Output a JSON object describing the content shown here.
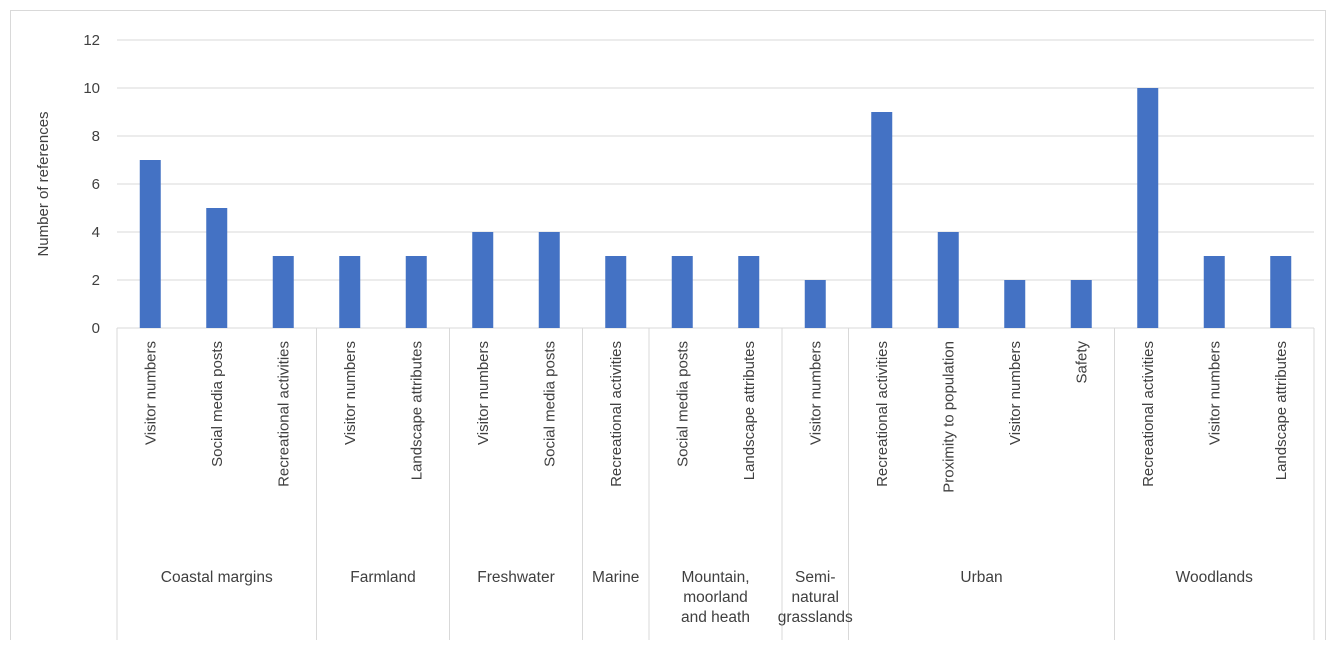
{
  "chart_data": {
    "type": "bar",
    "title": "",
    "xlabel": "",
    "ylabel": "Number of references",
    "ylim": [
      0,
      12
    ],
    "yticks": [
      0,
      2,
      4,
      6,
      8,
      10,
      12
    ],
    "grid": true,
    "legend": "none",
    "bar_color": "#4472c4",
    "groups": [
      {
        "name": "Coastal margins",
        "label_lines": [
          "Coastal margins"
        ],
        "categories": [
          "Visitor numbers",
          "Social media posts",
          "Recreational activities"
        ],
        "values": [
          7,
          5,
          3
        ]
      },
      {
        "name": "Farmland",
        "label_lines": [
          "Farmland"
        ],
        "categories": [
          "Visitor numbers",
          "Landscape attributes"
        ],
        "values": [
          3,
          3
        ]
      },
      {
        "name": "Freshwater",
        "label_lines": [
          "Freshwater"
        ],
        "categories": [
          "Visitor numbers",
          "Social media posts"
        ],
        "values": [
          4,
          4
        ]
      },
      {
        "name": "Marine",
        "label_lines": [
          "Marine"
        ],
        "categories": [
          "Recreational activities"
        ],
        "values": [
          3
        ]
      },
      {
        "name": "Mountain, moorland and heath",
        "label_lines": [
          "Mountain,",
          "moorland",
          "and heath"
        ],
        "categories": [
          "Social media posts",
          "Landscape attributes"
        ],
        "values": [
          3,
          3
        ]
      },
      {
        "name": "Semi-natural grasslands",
        "label_lines": [
          "Semi-",
          "natural",
          "grasslands"
        ],
        "categories": [
          "Visitor numbers"
        ],
        "values": [
          2
        ]
      },
      {
        "name": "Urban",
        "label_lines": [
          "Urban"
        ],
        "categories": [
          "Recreational activities",
          "Proximity to population",
          "Visitor numbers",
          "Safety"
        ],
        "values": [
          9,
          4,
          2,
          2
        ]
      },
      {
        "name": "Woodlands",
        "label_lines": [
          "Woodlands"
        ],
        "categories": [
          "Recreational activities",
          "Visitor numbers",
          "Landscape attributes"
        ],
        "values": [
          10,
          3,
          3
        ]
      }
    ]
  }
}
